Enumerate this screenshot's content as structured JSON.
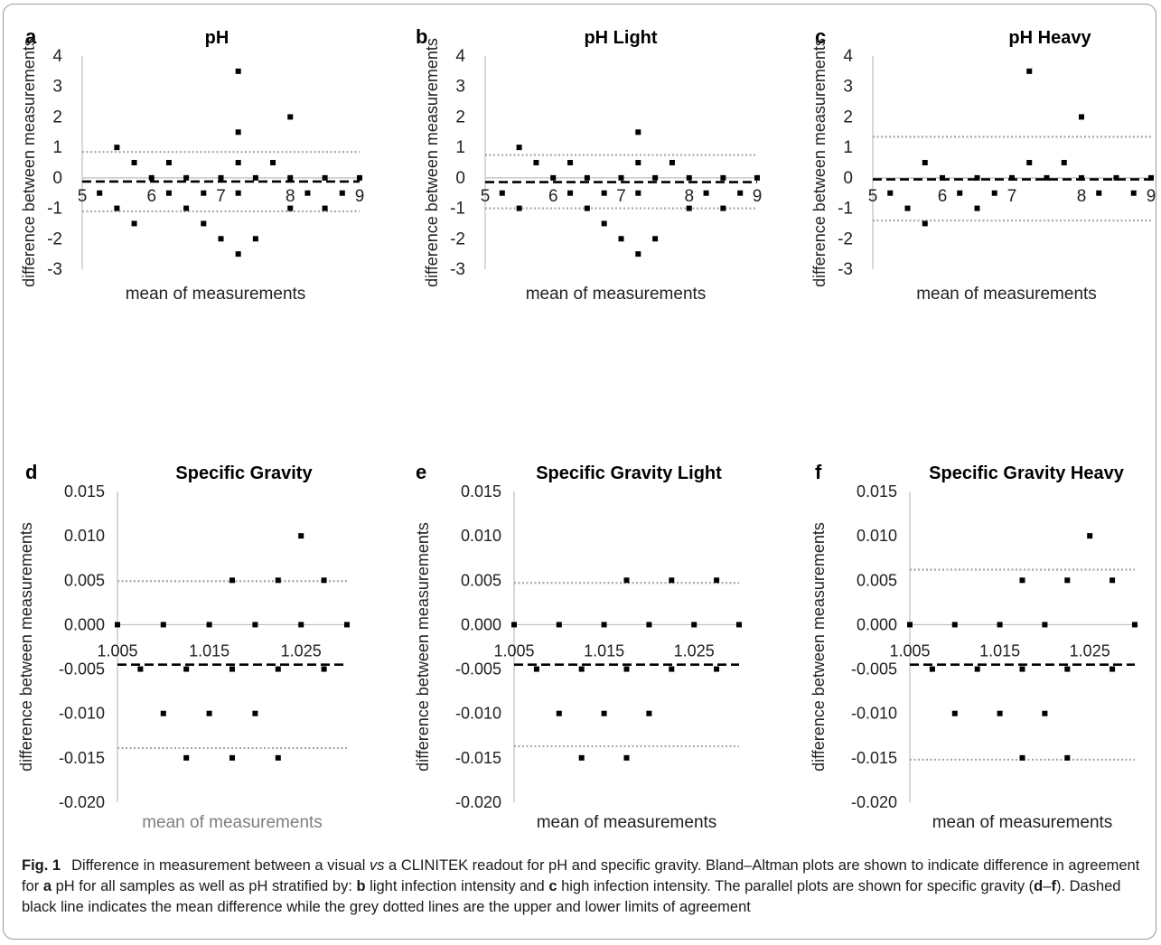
{
  "chart_data": [
    {
      "panel": "a",
      "title": "pH",
      "type": "scatter",
      "xlabel": "mean of measurements",
      "ylabel": "difference between measurements",
      "xlim": [
        5,
        9
      ],
      "ylim": [
        -3,
        4
      ],
      "xticks": [
        "5",
        "6",
        "7",
        "8",
        "9"
      ],
      "yticks": [
        "-3",
        "-2",
        "-1",
        "0",
        "1",
        "2",
        "3",
        "4"
      ],
      "mean_difference": -0.12,
      "upper_limit": 0.85,
      "lower_limit": -1.1,
      "points": [
        {
          "x": 5.25,
          "y": -0.5
        },
        {
          "x": 5.5,
          "y": 1.0
        },
        {
          "x": 5.5,
          "y": -1.0
        },
        {
          "x": 5.75,
          "y": 0.5
        },
        {
          "x": 5.75,
          "y": -1.5
        },
        {
          "x": 6.0,
          "y": 0.0
        },
        {
          "x": 6.25,
          "y": 0.5
        },
        {
          "x": 6.25,
          "y": -0.5
        },
        {
          "x": 6.5,
          "y": 0.0
        },
        {
          "x": 6.5,
          "y": -1.0
        },
        {
          "x": 6.75,
          "y": -0.5
        },
        {
          "x": 6.75,
          "y": -1.5
        },
        {
          "x": 7.0,
          "y": 0.0
        },
        {
          "x": 7.0,
          "y": -2.0
        },
        {
          "x": 7.25,
          "y": 3.5
        },
        {
          "x": 7.25,
          "y": 1.5
        },
        {
          "x": 7.25,
          "y": 0.5
        },
        {
          "x": 7.25,
          "y": -0.5
        },
        {
          "x": 7.25,
          "y": -2.5
        },
        {
          "x": 7.5,
          "y": 0.0
        },
        {
          "x": 7.5,
          "y": -2.0
        },
        {
          "x": 7.75,
          "y": 0.5
        },
        {
          "x": 8.0,
          "y": 2.0
        },
        {
          "x": 8.0,
          "y": 0.0
        },
        {
          "x": 8.0,
          "y": -1.0
        },
        {
          "x": 8.25,
          "y": -0.5
        },
        {
          "x": 8.5,
          "y": 0.0
        },
        {
          "x": 8.5,
          "y": -1.0
        },
        {
          "x": 8.75,
          "y": -0.5
        },
        {
          "x": 9.0,
          "y": 0.0
        }
      ]
    },
    {
      "panel": "b",
      "title": "pH Light",
      "type": "scatter",
      "xlabel": "mean of measurements",
      "ylabel": "difference between measurements",
      "xlim": [
        5,
        9
      ],
      "ylim": [
        -3,
        4
      ],
      "xticks": [
        "5",
        "6",
        "7",
        "8",
        "9"
      ],
      "yticks": [
        "-3",
        "-2",
        "-1",
        "0",
        "1",
        "2",
        "3",
        "4"
      ],
      "mean_difference": -0.14,
      "upper_limit": 0.75,
      "lower_limit": -1.0,
      "points": [
        {
          "x": 5.25,
          "y": -0.5
        },
        {
          "x": 5.5,
          "y": 1.0
        },
        {
          "x": 5.5,
          "y": -1.0
        },
        {
          "x": 5.75,
          "y": 0.5
        },
        {
          "x": 6.0,
          "y": 0.0
        },
        {
          "x": 6.25,
          "y": 0.5
        },
        {
          "x": 6.25,
          "y": -0.5
        },
        {
          "x": 6.5,
          "y": 0.0
        },
        {
          "x": 6.5,
          "y": -1.0
        },
        {
          "x": 6.75,
          "y": -0.5
        },
        {
          "x": 6.75,
          "y": -1.5
        },
        {
          "x": 7.0,
          "y": 0.0
        },
        {
          "x": 7.0,
          "y": -2.0
        },
        {
          "x": 7.25,
          "y": 1.5
        },
        {
          "x": 7.25,
          "y": 0.5
        },
        {
          "x": 7.25,
          "y": -0.5
        },
        {
          "x": 7.25,
          "y": -2.5
        },
        {
          "x": 7.5,
          "y": 0.0
        },
        {
          "x": 7.5,
          "y": -2.0
        },
        {
          "x": 7.75,
          "y": 0.5
        },
        {
          "x": 8.0,
          "y": 0.0
        },
        {
          "x": 8.0,
          "y": -1.0
        },
        {
          "x": 8.25,
          "y": -0.5
        },
        {
          "x": 8.5,
          "y": 0.0
        },
        {
          "x": 8.5,
          "y": -1.0
        },
        {
          "x": 8.75,
          "y": -0.5
        },
        {
          "x": 9.0,
          "y": 0.0
        }
      ]
    },
    {
      "panel": "c",
      "title": "pH Heavy",
      "type": "scatter",
      "xlabel": "mean of measurements",
      "ylabel": "difference between measurements",
      "xlim": [
        5,
        9
      ],
      "ylim": [
        -3,
        4
      ],
      "xticks": [
        "5",
        "6",
        "7",
        "8",
        "9"
      ],
      "yticks": [
        "-3",
        "-2",
        "-1",
        "0",
        "1",
        "2",
        "3",
        "4"
      ],
      "mean_difference": -0.05,
      "upper_limit": 1.35,
      "lower_limit": -1.4,
      "points": [
        {
          "x": 5.25,
          "y": -0.5
        },
        {
          "x": 5.5,
          "y": -1.0
        },
        {
          "x": 5.75,
          "y": 0.5
        },
        {
          "x": 5.75,
          "y": -1.5
        },
        {
          "x": 6.0,
          "y": 0.0
        },
        {
          "x": 6.25,
          "y": -0.5
        },
        {
          "x": 6.5,
          "y": 0.0
        },
        {
          "x": 6.5,
          "y": -1.0
        },
        {
          "x": 6.75,
          "y": -0.5
        },
        {
          "x": 7.0,
          "y": 0.0
        },
        {
          "x": 7.25,
          "y": 3.5
        },
        {
          "x": 7.25,
          "y": 0.5
        },
        {
          "x": 7.5,
          "y": 0.0
        },
        {
          "x": 7.75,
          "y": 0.5
        },
        {
          "x": 8.0,
          "y": 2.0
        },
        {
          "x": 8.0,
          "y": 0.0
        },
        {
          "x": 8.25,
          "y": -0.5
        },
        {
          "x": 8.5,
          "y": 0.0
        },
        {
          "x": 8.75,
          "y": -0.5
        },
        {
          "x": 9.0,
          "y": 0.0
        }
      ]
    },
    {
      "panel": "d",
      "title": "Specific Gravity",
      "type": "scatter",
      "xlabel": "mean of measurements",
      "ylabel": "difference between measurements",
      "xlim": [
        1.005,
        1.03
      ],
      "ylim": [
        -0.02,
        0.015
      ],
      "xticks": [
        "1.005",
        "1.015",
        "1.025"
      ],
      "yticks": [
        "-0.020",
        "-0.015",
        "-0.010",
        "-0.005",
        "0.000",
        "0.005",
        "0.010",
        "0.015"
      ],
      "mean_difference": -0.0045,
      "upper_limit": 0.0049,
      "lower_limit": -0.0139,
      "points": [
        {
          "x": 1.005,
          "y": 0.0
        },
        {
          "x": 1.0075,
          "y": -0.005
        },
        {
          "x": 1.01,
          "y": 0.0
        },
        {
          "x": 1.01,
          "y": -0.01
        },
        {
          "x": 1.0125,
          "y": -0.005
        },
        {
          "x": 1.0125,
          "y": -0.015
        },
        {
          "x": 1.015,
          "y": 0.0
        },
        {
          "x": 1.015,
          "y": -0.01
        },
        {
          "x": 1.0175,
          "y": 0.005
        },
        {
          "x": 1.0175,
          "y": -0.005
        },
        {
          "x": 1.0175,
          "y": -0.015
        },
        {
          "x": 1.02,
          "y": 0.0
        },
        {
          "x": 1.02,
          "y": -0.01
        },
        {
          "x": 1.0225,
          "y": 0.005
        },
        {
          "x": 1.0225,
          "y": -0.005
        },
        {
          "x": 1.0225,
          "y": -0.015
        },
        {
          "x": 1.025,
          "y": 0.01
        },
        {
          "x": 1.025,
          "y": 0.0
        },
        {
          "x": 1.0275,
          "y": 0.005
        },
        {
          "x": 1.0275,
          "y": -0.005
        },
        {
          "x": 1.03,
          "y": 0.0
        }
      ]
    },
    {
      "panel": "e",
      "title": "Specific Gravity Light",
      "type": "scatter",
      "xlabel": "mean of measurements",
      "ylabel": "difference between measurements",
      "xlim": [
        1.005,
        1.03
      ],
      "ylim": [
        -0.02,
        0.015
      ],
      "xticks": [
        "1.005",
        "1.015",
        "1.025"
      ],
      "yticks": [
        "-0.020",
        "-0.015",
        "-0.010",
        "-0.005",
        "0.000",
        "0.005",
        "0.010",
        "0.015"
      ],
      "mean_difference": -0.0045,
      "upper_limit": 0.0047,
      "lower_limit": -0.0137,
      "points": [
        {
          "x": 1.005,
          "y": 0.0
        },
        {
          "x": 1.0075,
          "y": -0.005
        },
        {
          "x": 1.01,
          "y": 0.0
        },
        {
          "x": 1.01,
          "y": -0.01
        },
        {
          "x": 1.0125,
          "y": -0.005
        },
        {
          "x": 1.0125,
          "y": -0.015
        },
        {
          "x": 1.015,
          "y": 0.0
        },
        {
          "x": 1.015,
          "y": -0.01
        },
        {
          "x": 1.0175,
          "y": 0.005
        },
        {
          "x": 1.0175,
          "y": -0.005
        },
        {
          "x": 1.0175,
          "y": -0.015
        },
        {
          "x": 1.02,
          "y": 0.0
        },
        {
          "x": 1.02,
          "y": -0.01
        },
        {
          "x": 1.0225,
          "y": 0.005
        },
        {
          "x": 1.0225,
          "y": -0.005
        },
        {
          "x": 1.025,
          "y": 0.0
        },
        {
          "x": 1.0275,
          "y": 0.005
        },
        {
          "x": 1.0275,
          "y": -0.005
        },
        {
          "x": 1.03,
          "y": 0.0
        }
      ]
    },
    {
      "panel": "f",
      "title": "Specific Gravity Heavy",
      "type": "scatter",
      "xlabel": "mean of measurements",
      "ylabel": "difference between measurements",
      "xlim": [
        1.005,
        1.03
      ],
      "ylim": [
        -0.02,
        0.015
      ],
      "xticks": [
        "1.005",
        "1.015",
        "1.025"
      ],
      "yticks": [
        "-0.020",
        "-0.015",
        "-0.010",
        "-0.005",
        "0.000",
        "0.005",
        "0.010",
        "0.015"
      ],
      "mean_difference": -0.0045,
      "upper_limit": 0.0062,
      "lower_limit": -0.0152,
      "points": [
        {
          "x": 1.005,
          "y": 0.0
        },
        {
          "x": 1.0075,
          "y": -0.005
        },
        {
          "x": 1.01,
          "y": 0.0
        },
        {
          "x": 1.01,
          "y": -0.01
        },
        {
          "x": 1.0125,
          "y": -0.005
        },
        {
          "x": 1.015,
          "y": 0.0
        },
        {
          "x": 1.015,
          "y": -0.01
        },
        {
          "x": 1.0175,
          "y": 0.005
        },
        {
          "x": 1.0175,
          "y": -0.005
        },
        {
          "x": 1.0175,
          "y": -0.015
        },
        {
          "x": 1.02,
          "y": 0.0
        },
        {
          "x": 1.02,
          "y": -0.01
        },
        {
          "x": 1.0225,
          "y": 0.005
        },
        {
          "x": 1.0225,
          "y": -0.005
        },
        {
          "x": 1.0225,
          "y": -0.015
        },
        {
          "x": 1.025,
          "y": 0.01
        },
        {
          "x": 1.0275,
          "y": 0.005
        },
        {
          "x": 1.0275,
          "y": -0.005
        },
        {
          "x": 1.03,
          "y": 0.0
        }
      ]
    }
  ],
  "colors": {
    "points": "#000000",
    "mean_line": "#000000",
    "limit_lines": "#a6a6a6",
    "axis_lines": "#bfbfbf",
    "xlabel_panel_d": "#7f7f7f"
  },
  "caption": {
    "fig_number": "Fig. 1",
    "text": [
      {
        "t": "Difference in measurement between a visual "
      },
      {
        "t": "vs",
        "i": true
      },
      {
        "t": " a CLINITEK readout for pH and specific gravity. Bland–Altman plots are shown to indicate difference in agreement for "
      },
      {
        "t": "a",
        "b": true
      },
      {
        "t": " pH for all samples as well as pH stratified by: "
      },
      {
        "t": "b",
        "b": true
      },
      {
        "t": " light infection intensity and "
      },
      {
        "t": "c",
        "b": true
      },
      {
        "t": " high infection intensity. The parallel plots are shown for specific gravity ("
      },
      {
        "t": "d",
        "b": true
      },
      {
        "t": "–"
      },
      {
        "t": "f",
        "b": true
      },
      {
        "t": "). Dashed black line indicates the mean difference while the grey dotted lines are the upper and lower limits of agreement"
      }
    ]
  }
}
